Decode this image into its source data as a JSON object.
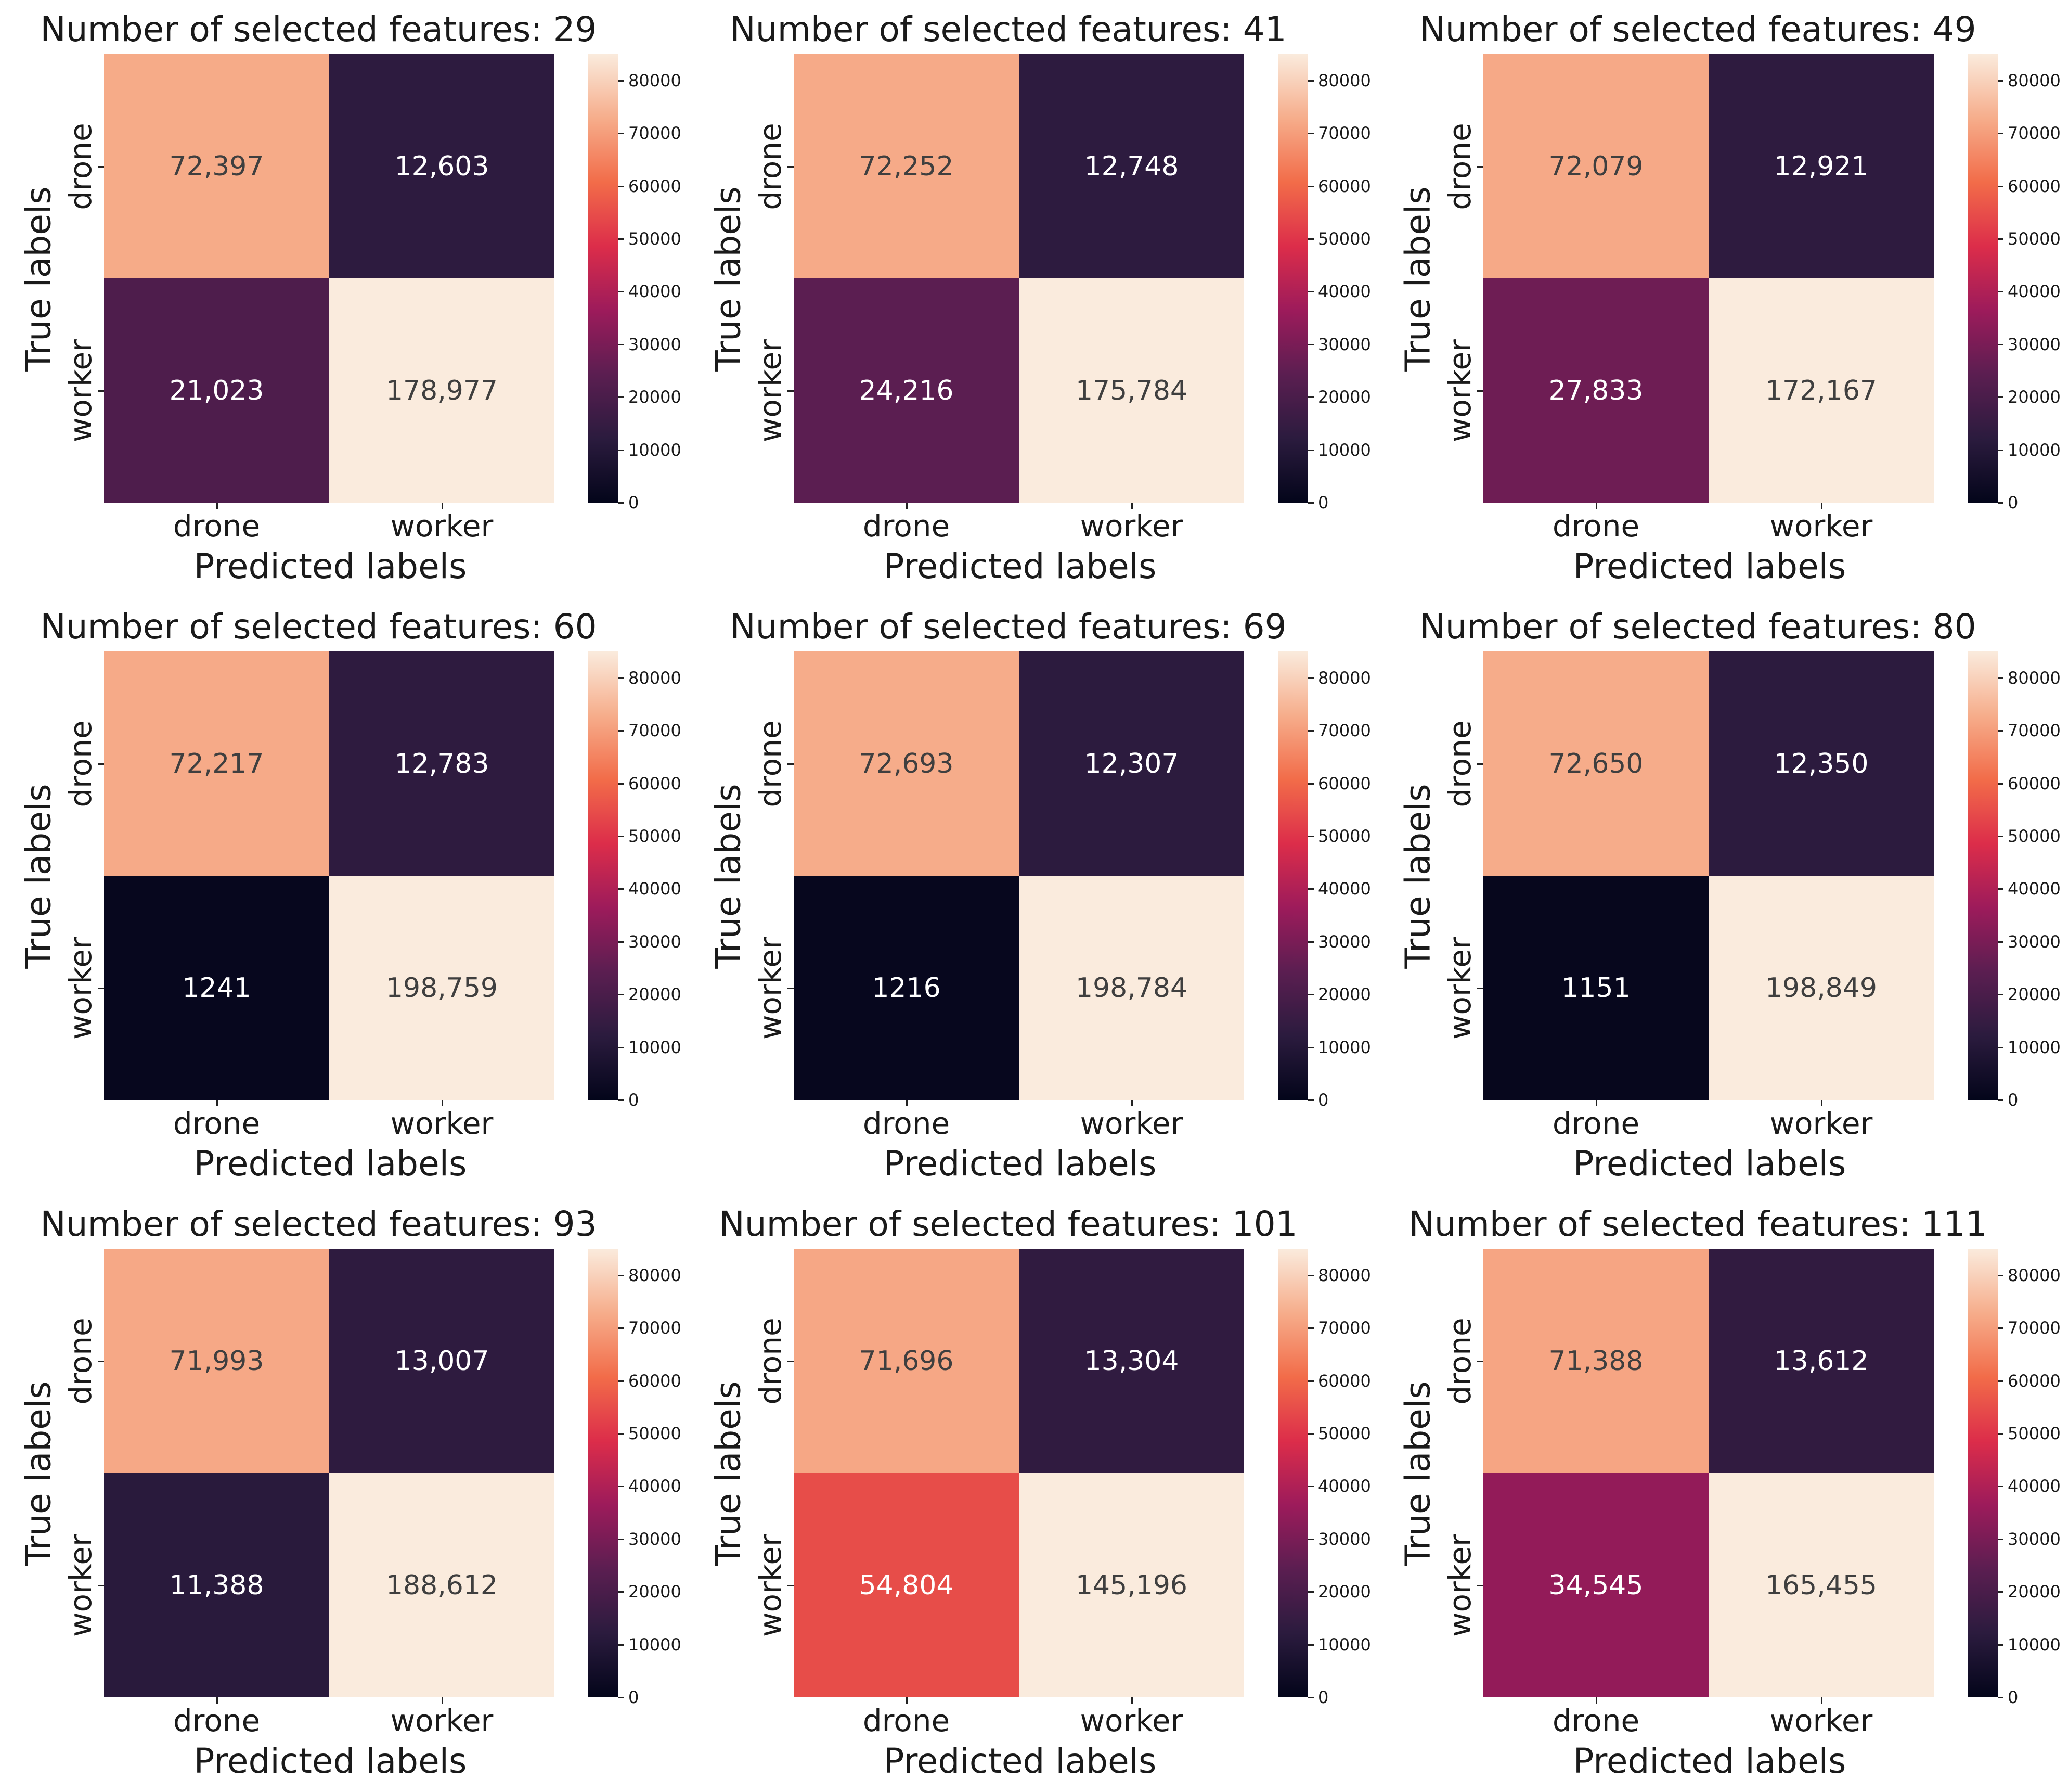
{
  "colormap": {
    "name": "rocket",
    "stops": [
      "#03051a",
      "#2b1b3e",
      "#5b1e51",
      "#9d1b5b",
      "#dc2d4a",
      "#f26c49",
      "#f6ad8b",
      "#faebdd"
    ],
    "vmin": 0,
    "vmax": 85000,
    "ticks": [
      "0",
      "10000",
      "20000",
      "30000",
      "40000",
      "50000",
      "60000",
      "70000",
      "80000"
    ]
  },
  "annot_colors": {
    "light": "#ffffff",
    "dark": "#3f3f3f"
  },
  "chart_data": [
    {
      "type": "heatmap",
      "title": "Number of selected features: 29",
      "xlabel": "Predicted labels",
      "ylabel": "True labels",
      "x_ticklabels": [
        "drone",
        "worker"
      ],
      "y_ticklabels": [
        "drone",
        "worker"
      ],
      "values": [
        [
          72397,
          12603
        ],
        [
          21023,
          178977
        ]
      ],
      "annotations": [
        [
          "72,397",
          "12,603"
        ],
        [
          "21,023",
          "178,977"
        ]
      ]
    },
    {
      "type": "heatmap",
      "title": "Number of selected features: 41",
      "xlabel": "Predicted labels",
      "ylabel": "True labels",
      "x_ticklabels": [
        "drone",
        "worker"
      ],
      "y_ticklabels": [
        "drone",
        "worker"
      ],
      "values": [
        [
          72252,
          12748
        ],
        [
          24216,
          175784
        ]
      ],
      "annotations": [
        [
          "72,252",
          "12,748"
        ],
        [
          "24,216",
          "175,784"
        ]
      ]
    },
    {
      "type": "heatmap",
      "title": "Number of selected features: 49",
      "xlabel": "Predicted labels",
      "ylabel": "True labels",
      "x_ticklabels": [
        "drone",
        "worker"
      ],
      "y_ticklabels": [
        "drone",
        "worker"
      ],
      "values": [
        [
          72079,
          12921
        ],
        [
          27833,
          172167
        ]
      ],
      "annotations": [
        [
          "72,079",
          "12,921"
        ],
        [
          "27,833",
          "172,167"
        ]
      ]
    },
    {
      "type": "heatmap",
      "title": "Number of selected features: 60",
      "xlabel": "Predicted labels",
      "ylabel": "True labels",
      "x_ticklabels": [
        "drone",
        "worker"
      ],
      "y_ticklabels": [
        "drone",
        "worker"
      ],
      "values": [
        [
          72217,
          12783
        ],
        [
          1241,
          198759
        ]
      ],
      "annotations": [
        [
          "72,217",
          "12,783"
        ],
        [
          "1241",
          "198,759"
        ]
      ]
    },
    {
      "type": "heatmap",
      "title": "Number of selected features: 69",
      "xlabel": "Predicted labels",
      "ylabel": "True labels",
      "x_ticklabels": [
        "drone",
        "worker"
      ],
      "y_ticklabels": [
        "drone",
        "worker"
      ],
      "values": [
        [
          72693,
          12307
        ],
        [
          1216,
          198784
        ]
      ],
      "annotations": [
        [
          "72,693",
          "12,307"
        ],
        [
          "1216",
          "198,784"
        ]
      ]
    },
    {
      "type": "heatmap",
      "title": "Number of selected features: 80",
      "xlabel": "Predicted labels",
      "ylabel": "True labels",
      "x_ticklabels": [
        "drone",
        "worker"
      ],
      "y_ticklabels": [
        "drone",
        "worker"
      ],
      "values": [
        [
          72650,
          12350
        ],
        [
          1151,
          198849
        ]
      ],
      "annotations": [
        [
          "72,650",
          "12,350"
        ],
        [
          "1151",
          "198,849"
        ]
      ]
    },
    {
      "type": "heatmap",
      "title": "Number of selected features: 93",
      "xlabel": "Predicted labels",
      "ylabel": "True labels",
      "x_ticklabels": [
        "drone",
        "worker"
      ],
      "y_ticklabels": [
        "drone",
        "worker"
      ],
      "values": [
        [
          71993,
          13007
        ],
        [
          11388,
          188612
        ]
      ],
      "annotations": [
        [
          "71,993",
          "13,007"
        ],
        [
          "11,388",
          "188,612"
        ]
      ]
    },
    {
      "type": "heatmap",
      "title": "Number of selected features: 101",
      "xlabel": "Predicted labels",
      "ylabel": "True labels",
      "x_ticklabels": [
        "drone",
        "worker"
      ],
      "y_ticklabels": [
        "drone",
        "worker"
      ],
      "values": [
        [
          71696,
          13304
        ],
        [
          54804,
          145196
        ]
      ],
      "annotations": [
        [
          "71,696",
          "13,304"
        ],
        [
          "54,804",
          "145,196"
        ]
      ]
    },
    {
      "type": "heatmap",
      "title": "Number of selected features: 111",
      "xlabel": "Predicted labels",
      "ylabel": "True labels",
      "x_ticklabels": [
        "drone",
        "worker"
      ],
      "y_ticklabels": [
        "drone",
        "worker"
      ],
      "values": [
        [
          71388,
          13612
        ],
        [
          34545,
          165455
        ]
      ],
      "annotations": [
        [
          "71,388",
          "13,612"
        ],
        [
          "34,545",
          "165,455"
        ]
      ]
    }
  ]
}
